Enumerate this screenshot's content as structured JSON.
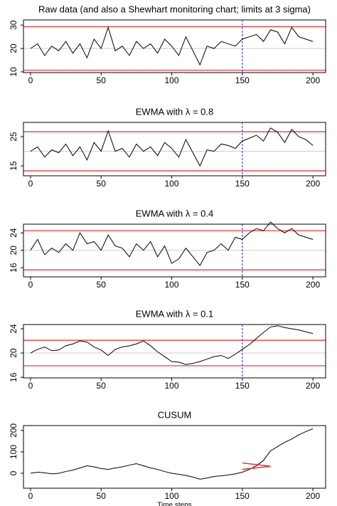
{
  "chart_data": [
    {
      "type": "line",
      "title": "Raw data (and also a Shewhart monitoring chart; limits at 3 sigma)",
      "x": [
        0,
        5,
        10,
        15,
        20,
        25,
        30,
        35,
        40,
        45,
        50,
        55,
        60,
        65,
        70,
        75,
        80,
        85,
        90,
        95,
        100,
        105,
        110,
        115,
        120,
        125,
        130,
        135,
        140,
        145,
        150,
        155,
        160,
        165,
        170,
        175,
        180,
        185,
        190,
        195,
        200
      ],
      "series": [
        {
          "color": "#000000",
          "values": [
            20,
            22,
            17,
            21,
            19,
            23,
            18,
            22,
            16,
            24,
            20,
            29,
            19,
            21,
            17,
            23,
            20,
            22,
            18,
            24,
            21,
            17,
            25,
            19,
            13,
            21,
            20,
            23,
            22,
            21,
            24,
            25,
            26,
            23,
            28,
            27,
            22,
            29,
            25,
            24,
            23
          ]
        }
      ],
      "xlim": [
        -5,
        209
      ],
      "ylim": [
        9.7,
        32.2
      ],
      "xticks": [
        0,
        50,
        100,
        150,
        200
      ],
      "yticks": [
        10,
        20,
        30
      ],
      "limits": [
        29.3,
        10.7
      ],
      "limit_color": "#e8262b",
      "center": 20,
      "center_color": "#cccccc",
      "change_point": 150,
      "change_color": "#2222cc"
    },
    {
      "type": "line",
      "title": "EWMA with λ = 0.8",
      "x": [
        0,
        5,
        10,
        15,
        20,
        25,
        30,
        35,
        40,
        45,
        50,
        55,
        60,
        65,
        70,
        75,
        80,
        85,
        90,
        95,
        100,
        105,
        110,
        115,
        120,
        125,
        130,
        135,
        140,
        145,
        150,
        155,
        160,
        165,
        170,
        175,
        180,
        185,
        190,
        195,
        200
      ],
      "series": [
        {
          "color": "#000000",
          "values": [
            20,
            21.5,
            18,
            20.5,
            19.5,
            22.5,
            18.5,
            21.5,
            17,
            23,
            20,
            27,
            20,
            21,
            18,
            22.5,
            20,
            21.5,
            18.5,
            23,
            21,
            18,
            24,
            19.5,
            15,
            20.5,
            20,
            22.5,
            22,
            21,
            23.5,
            24.5,
            25.5,
            23.5,
            28,
            26.5,
            23,
            27.5,
            25,
            24,
            22
          ]
        }
      ],
      "xlim": [
        -5,
        209
      ],
      "ylim": [
        11.6,
        29.9
      ],
      "xticks": [
        0,
        50,
        100,
        150,
        200
      ],
      "yticks": [
        15,
        25
      ],
      "limits": [
        26.7,
        13.3
      ],
      "limit_color": "#e8262b",
      "center": 20,
      "center_color": "#cccccc",
      "change_point": 150,
      "change_color": "#2222cc"
    },
    {
      "type": "line",
      "title": "EWMA with λ = 0.4",
      "x": [
        0,
        5,
        10,
        15,
        20,
        25,
        30,
        35,
        40,
        45,
        50,
        55,
        60,
        65,
        70,
        75,
        80,
        85,
        90,
        95,
        100,
        105,
        110,
        115,
        120,
        125,
        130,
        135,
        140,
        145,
        150,
        155,
        160,
        165,
        170,
        175,
        180,
        185,
        190,
        195,
        200
      ],
      "series": [
        {
          "color": "#000000",
          "values": [
            20,
            22.5,
            19,
            20.5,
            19.5,
            21.5,
            20,
            24,
            21.5,
            22,
            20,
            23.5,
            21,
            20.5,
            18.5,
            21.5,
            20,
            22,
            18.5,
            21,
            17,
            18,
            20.5,
            18.5,
            16.5,
            19.5,
            20,
            21.5,
            20,
            23,
            22.5,
            24,
            25,
            24.5,
            26.5,
            25,
            24,
            25,
            23.5,
            23,
            22.5
          ]
        }
      ],
      "xlim": [
        -5,
        209
      ],
      "ylim": [
        13.9,
        26
      ],
      "xticks": [
        0,
        50,
        100,
        150,
        200
      ],
      "yticks": [
        16,
        20,
        24
      ],
      "limits": [
        24.5,
        15.5
      ],
      "limit_color": "#e8262b",
      "center": 20,
      "center_color": "#cccccc",
      "change_point": 150,
      "change_color": "#2222cc"
    },
    {
      "type": "line",
      "title": "EWMA with λ = 0.1",
      "x": [
        0,
        5,
        10,
        15,
        20,
        25,
        30,
        35,
        40,
        45,
        50,
        55,
        60,
        65,
        70,
        75,
        80,
        85,
        90,
        95,
        100,
        105,
        110,
        115,
        120,
        125,
        130,
        135,
        140,
        145,
        150,
        155,
        160,
        165,
        170,
        175,
        180,
        185,
        190,
        195,
        200
      ],
      "series": [
        {
          "color": "#000000",
          "values": [
            20,
            20.6,
            21,
            20.4,
            20.5,
            21.2,
            21.5,
            22,
            21.8,
            21,
            20.5,
            19.6,
            20.6,
            21,
            21.2,
            21.5,
            22,
            21.2,
            20.2,
            19.4,
            18.6,
            18.5,
            18.1,
            18.3,
            18.6,
            19,
            19.4,
            19.6,
            19.1,
            19.8,
            20.6,
            21.4,
            22.4,
            23.4,
            24.3,
            24.5,
            24.2,
            24,
            23.8,
            23.5,
            23.2
          ]
        }
      ],
      "xlim": [
        -5,
        209
      ],
      "ylim": [
        15.9,
        24.7
      ],
      "xticks": [
        0,
        50,
        100,
        150,
        200
      ],
      "yticks": [
        16,
        20,
        24
      ],
      "limits": [
        22.1,
        17.9
      ],
      "limit_color": "#e8262b",
      "center": 20,
      "center_color": "#cccccc",
      "change_point": 150,
      "change_color": "#2222cc"
    },
    {
      "type": "line",
      "title": "CUSUM",
      "xlabel": "Time steps",
      "x": [
        0,
        5,
        10,
        15,
        20,
        25,
        30,
        35,
        40,
        45,
        50,
        55,
        60,
        65,
        70,
        75,
        80,
        85,
        90,
        95,
        100,
        105,
        110,
        115,
        120,
        125,
        130,
        135,
        140,
        145,
        150,
        155,
        160,
        165,
        170,
        175,
        180,
        185,
        190,
        195,
        200
      ],
      "series": [
        {
          "color": "#000000",
          "values": [
            0,
            5,
            2,
            -3,
            0,
            8,
            15,
            25,
            35,
            30,
            22,
            18,
            25,
            30,
            38,
            45,
            35,
            25,
            18,
            8,
            0,
            -5,
            -10,
            -18,
            -28,
            -22,
            -15,
            -12,
            -8,
            -3,
            5,
            18,
            35,
            60,
            105,
            125,
            145,
            160,
            180,
            195,
            208
          ]
        }
      ],
      "xlim": [
        -5,
        209
      ],
      "ylim": [
        -70,
        223
      ],
      "xticks": [
        0,
        50,
        100,
        150,
        200
      ],
      "yticks": [
        0,
        100,
        200
      ],
      "vmask": {
        "x": [
          150,
          170,
          150
        ],
        "y": [
          48,
          33,
          18
        ],
        "color": "#e8262b"
      }
    }
  ]
}
